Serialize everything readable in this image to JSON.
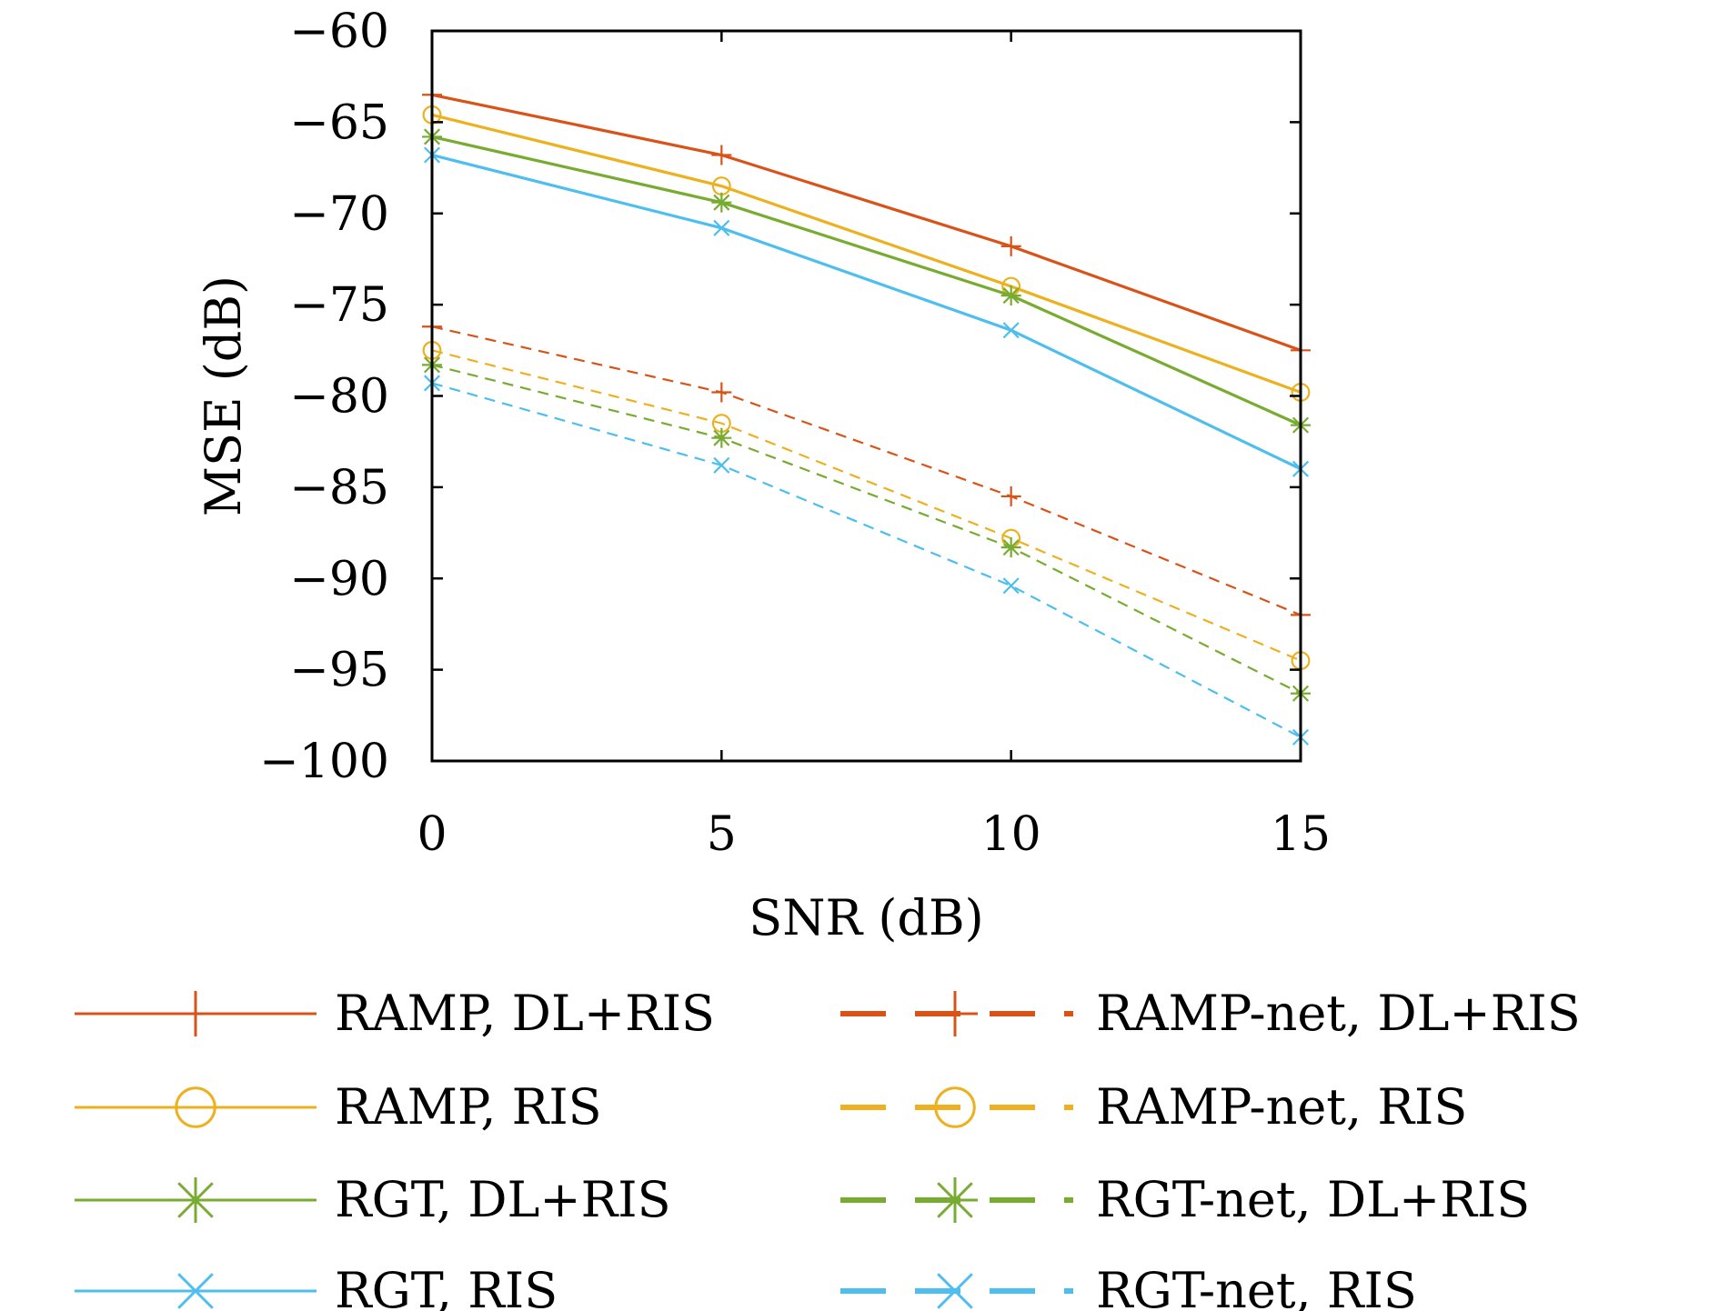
{
  "chart_data": {
    "type": "line",
    "title": "",
    "xlabel": "SNR (dB)",
    "ylabel": "MSE (dB)",
    "xlim": [
      0,
      15
    ],
    "ylim": [
      -100,
      -60
    ],
    "x_ticks": [
      "0",
      "5",
      "10",
      "15"
    ],
    "y_ticks": [
      "−60",
      "−65",
      "−70",
      "−75",
      "−80",
      "−85",
      "−90",
      "−95",
      "−100"
    ],
    "grid": false,
    "legend_position": "bottom",
    "x": [
      0,
      5,
      10,
      15
    ],
    "series": [
      {
        "name": "RAMP, DL+RIS",
        "values": [
          -63.5,
          -66.8,
          -71.8,
          -77.5
        ],
        "color": "#D95319",
        "marker": "plus",
        "dash": "solid"
      },
      {
        "name": "RAMP, RIS",
        "values": [
          -64.6,
          -68.5,
          -74.0,
          -79.8
        ],
        "color": "#EDB120",
        "marker": "circle",
        "dash": "solid"
      },
      {
        "name": "RGT, DL+RIS",
        "values": [
          -65.8,
          -69.4,
          -74.5,
          -81.6
        ],
        "color": "#77AC30",
        "marker": "asterisk",
        "dash": "solid"
      },
      {
        "name": "RGT, RIS",
        "values": [
          -66.8,
          -70.8,
          -76.4,
          -84.0
        ],
        "color": "#4DBEEE",
        "marker": "x",
        "dash": "solid"
      },
      {
        "name": "RAMP-net, DL+RIS",
        "values": [
          -76.2,
          -79.8,
          -85.5,
          -92.0
        ],
        "color": "#D95319",
        "marker": "plus",
        "dash": "dashed"
      },
      {
        "name": "RAMP-net, RIS",
        "values": [
          -77.5,
          -81.5,
          -87.8,
          -94.5
        ],
        "color": "#EDB120",
        "marker": "circle",
        "dash": "dashed"
      },
      {
        "name": "RGT-net, DL+RIS",
        "values": [
          -78.3,
          -82.3,
          -88.3,
          -96.3
        ],
        "color": "#77AC30",
        "marker": "asterisk",
        "dash": "dashed"
      },
      {
        "name": "RGT-net, RIS",
        "values": [
          -79.3,
          -83.8,
          -90.4,
          -98.7
        ],
        "color": "#4DBEEE",
        "marker": "x",
        "dash": "dashed"
      }
    ]
  }
}
